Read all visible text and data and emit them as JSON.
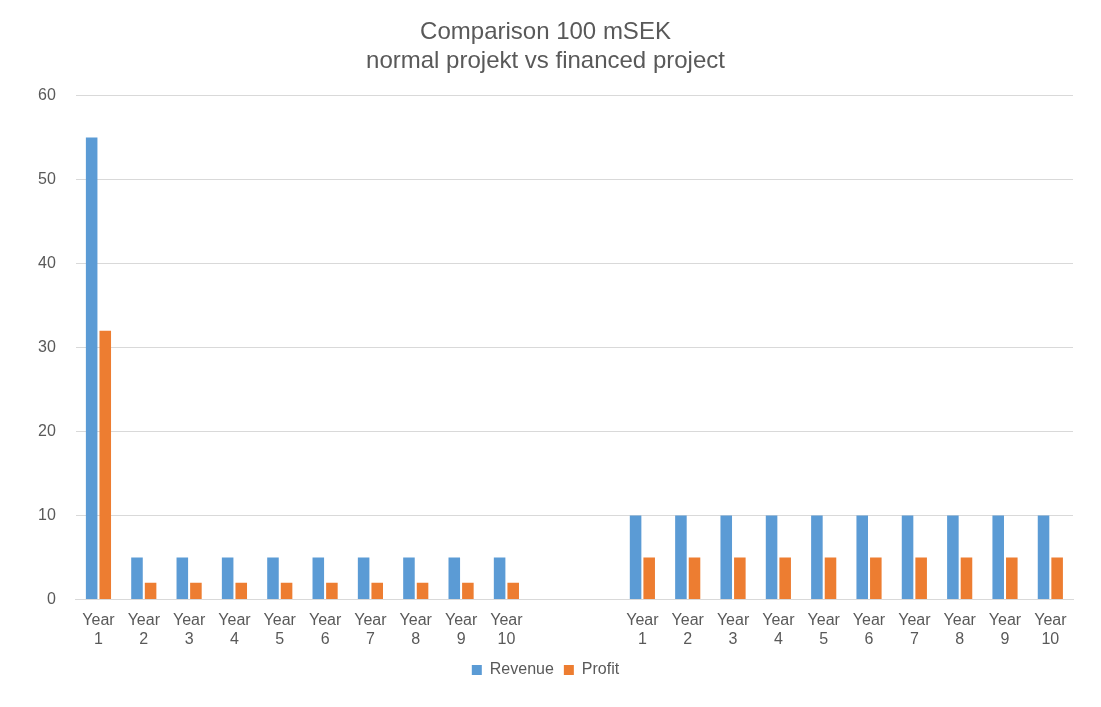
{
  "chart_data": {
    "type": "bar",
    "title": [
      "Comparison 100 mSEK",
      "normal projekt vs financed project"
    ],
    "categories": [
      "Year 1",
      "Year 2",
      "Year 3",
      "Year 4",
      "Year 5",
      "Year 6",
      "Year 7",
      "Year 8",
      "Year 9",
      "Year 10",
      null,
      null,
      "Year 1",
      "Year 2",
      "Year 3",
      "Year 4",
      "Year 5",
      "Year 6",
      "Year 7",
      "Year 8",
      "Year 9",
      "Year 10"
    ],
    "series": [
      {
        "name": "Revenue",
        "color": "#5b9bd5",
        "values": [
          55,
          5,
          5,
          5,
          5,
          5,
          5,
          5,
          5,
          5,
          null,
          null,
          10,
          10,
          10,
          10,
          10,
          10,
          10,
          10,
          10,
          10
        ]
      },
      {
        "name": "Profit",
        "color": "#ed7d31",
        "values": [
          32,
          2,
          2,
          2,
          2,
          2,
          2,
          2,
          2,
          2,
          null,
          null,
          5,
          5,
          5,
          5,
          5,
          5,
          5,
          5,
          5,
          5
        ]
      }
    ],
    "ylim": [
      0,
      60
    ],
    "yticks": [
      0,
      10,
      20,
      30,
      40,
      50,
      60
    ],
    "grid": "y",
    "legend": "bottom"
  }
}
